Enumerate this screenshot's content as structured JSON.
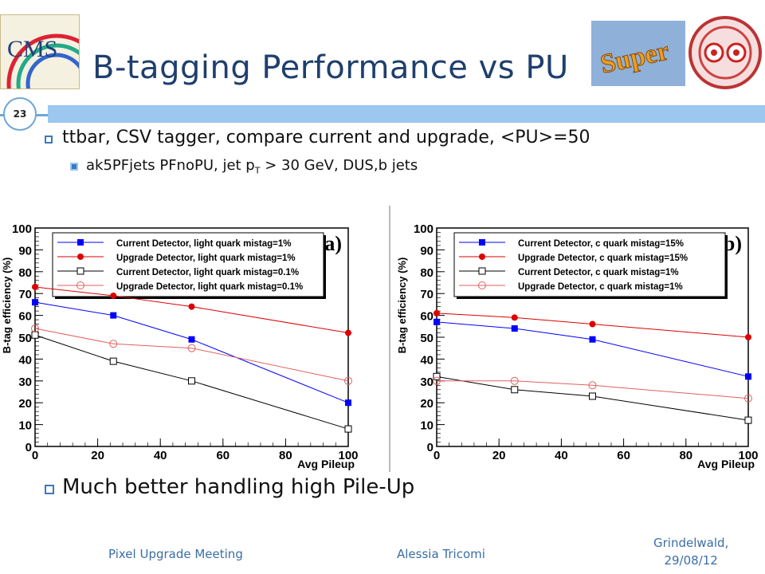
{
  "slide": {
    "title": "B-tagging Performance vs PU",
    "page_number": "23",
    "bullet1": "ttbar, CSV tagger, compare current and upgrade, <PU>=50",
    "bullet2_main": "ak5PFjets PFnoPU, jet p",
    "bullet2_sub": "T",
    "bullet2_rest": " > 30 GeV, DUS,b jets",
    "bullet3": "Much better handling high Pile-Up",
    "footer_left": "Pixel Upgrade Meeting",
    "footer_center": "Alessia Tricomi",
    "footer_right_line1": "Grindelwald,",
    "footer_right_line2": "29/08/12",
    "logo_left_text": "CMS",
    "logo_super_text": "Super"
  },
  "colors": {
    "title": "#1f3f6d",
    "accent_bar": "#9cc7ee",
    "blue_series": "#0000ff",
    "red_series": "#dd0000",
    "black_series": "#000000",
    "pink_series": "#e06060"
  },
  "chart_data": [
    {
      "type": "line",
      "panel_label": "(a)",
      "xlabel": "Avg Pileup",
      "ylabel": "B-tag efficiency (%)",
      "xlim": [
        0,
        100
      ],
      "ylim": [
        0,
        100
      ],
      "x_ticks": [
        "0",
        "20",
        "40",
        "60",
        "80",
        "100"
      ],
      "y_ticks": [
        "0",
        "10",
        "20",
        "30",
        "40",
        "50",
        "60",
        "70",
        "80",
        "90",
        "100"
      ],
      "grid": false,
      "legend_position": "top-left",
      "series": [
        {
          "name": "Current Detector, light quark mistag=1%",
          "color": "#0000ff",
          "marker": "filled-square",
          "x": [
            0,
            25,
            50,
            100
          ],
          "y": [
            66,
            60,
            49,
            20
          ]
        },
        {
          "name": "Upgrade Detector, light quark mistag=1%",
          "color": "#dd0000",
          "marker": "filled-circle",
          "x": [
            0,
            25,
            50,
            100
          ],
          "y": [
            73,
            69,
            64,
            52
          ]
        },
        {
          "name": "Current Detector, light quark mistag=0.1%",
          "color": "#000000",
          "marker": "open-square",
          "x": [
            0,
            25,
            50,
            100
          ],
          "y": [
            51,
            39,
            30,
            8
          ]
        },
        {
          "name": "Upgrade Detector, light quark mistag=0.1%",
          "color": "#e06060",
          "marker": "open-circle",
          "x": [
            0,
            25,
            50,
            100
          ],
          "y": [
            54,
            47,
            45,
            30
          ]
        }
      ]
    },
    {
      "type": "line",
      "panel_label": "(b)",
      "xlabel": "Avg Pileup",
      "ylabel": "B-tag efficiency (%)",
      "xlim": [
        0,
        100
      ],
      "ylim": [
        0,
        100
      ],
      "x_ticks": [
        "0",
        "20",
        "40",
        "60",
        "80",
        "100"
      ],
      "y_ticks": [
        "0",
        "10",
        "20",
        "30",
        "40",
        "50",
        "60",
        "70",
        "80",
        "90",
        "100"
      ],
      "grid": false,
      "legend_position": "top-left",
      "series": [
        {
          "name": "Current Detector, c quark mistag=15%",
          "color": "#0000ff",
          "marker": "filled-square",
          "x": [
            0,
            25,
            50,
            100
          ],
          "y": [
            57,
            54,
            49,
            32
          ]
        },
        {
          "name": "Upgrade Detector, c quark mistag=15%",
          "color": "#dd0000",
          "marker": "filled-circle",
          "x": [
            0,
            25,
            50,
            100
          ],
          "y": [
            61,
            59,
            56,
            50
          ]
        },
        {
          "name": "Current Detector, c quark mistag=1%",
          "color": "#000000",
          "marker": "open-square",
          "x": [
            0,
            25,
            50,
            100
          ],
          "y": [
            32,
            26,
            23,
            12
          ]
        },
        {
          "name": "Upgrade Detector, c quark mistag=1%",
          "color": "#e06060",
          "marker": "open-circle",
          "x": [
            0,
            25,
            50,
            100
          ],
          "y": [
            30,
            30,
            28,
            22
          ]
        }
      ]
    }
  ]
}
